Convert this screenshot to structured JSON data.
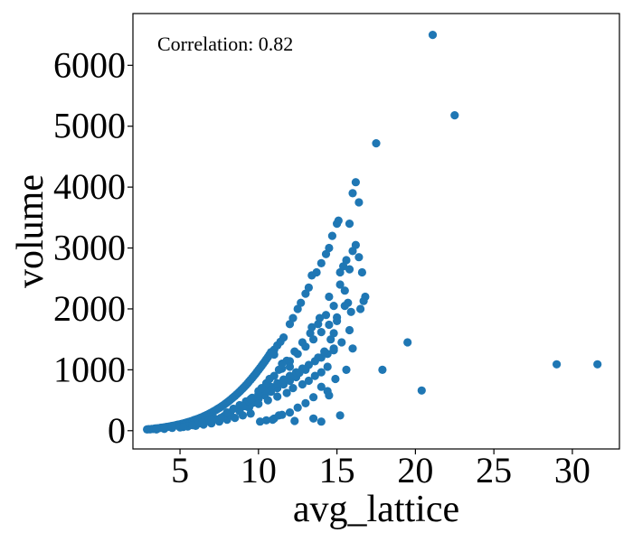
{
  "chart_data": {
    "type": "scatter",
    "title": "",
    "xlabel": "avg_lattice",
    "ylabel": "volume",
    "annotation": "Correlation: 0.82",
    "xlim": [
      2.0,
      33.0
    ],
    "ylim": [
      -300,
      6850
    ],
    "xticks": [
      5,
      10,
      15,
      20,
      25,
      30
    ],
    "yticks": [
      0,
      1000,
      2000,
      3000,
      4000,
      5000,
      6000
    ],
    "grid": false,
    "marker_color": "#1f77b4",
    "points": [
      [
        2.9,
        20
      ],
      [
        3.0,
        25
      ],
      [
        3.1,
        22
      ],
      [
        3.2,
        30
      ],
      [
        3.3,
        28
      ],
      [
        3.4,
        35
      ],
      [
        3.5,
        38
      ],
      [
        3.6,
        40
      ],
      [
        3.7,
        44
      ],
      [
        3.8,
        48
      ],
      [
        3.9,
        52
      ],
      [
        4.0,
        55
      ],
      [
        4.1,
        60
      ],
      [
        4.2,
        63
      ],
      [
        4.3,
        68
      ],
      [
        4.4,
        72
      ],
      [
        4.5,
        78
      ],
      [
        4.6,
        82
      ],
      [
        4.7,
        88
      ],
      [
        4.8,
        95
      ],
      [
        4.9,
        100
      ],
      [
        5.0,
        105
      ],
      [
        5.1,
        112
      ],
      [
        5.2,
        118
      ],
      [
        5.3,
        125
      ],
      [
        5.4,
        132
      ],
      [
        5.5,
        140
      ],
      [
        5.6,
        148
      ],
      [
        5.7,
        156
      ],
      [
        5.8,
        165
      ],
      [
        5.9,
        174
      ],
      [
        6.0,
        182
      ],
      [
        6.1,
        192
      ],
      [
        6.2,
        202
      ],
      [
        6.3,
        212
      ],
      [
        6.4,
        222
      ],
      [
        6.5,
        234
      ],
      [
        6.6,
        246
      ],
      [
        6.7,
        258
      ],
      [
        6.8,
        270
      ],
      [
        6.9,
        284
      ],
      [
        7.0,
        298
      ],
      [
        7.1,
        312
      ],
      [
        7.2,
        326
      ],
      [
        7.3,
        342
      ],
      [
        7.4,
        358
      ],
      [
        7.5,
        374
      ],
      [
        7.6,
        390
      ],
      [
        7.7,
        408
      ],
      [
        7.8,
        426
      ],
      [
        7.9,
        444
      ],
      [
        8.0,
        464
      ],
      [
        8.1,
        484
      ],
      [
        8.2,
        504
      ],
      [
        8.3,
        526
      ],
      [
        8.4,
        548
      ],
      [
        8.5,
        570
      ],
      [
        8.6,
        594
      ],
      [
        8.7,
        618
      ],
      [
        8.8,
        642
      ],
      [
        8.9,
        668
      ],
      [
        9.0,
        694
      ],
      [
        9.1,
        720
      ],
      [
        9.2,
        748
      ],
      [
        9.3,
        776
      ],
      [
        9.4,
        806
      ],
      [
        9.5,
        836
      ],
      [
        9.6,
        866
      ],
      [
        9.7,
        898
      ],
      [
        9.8,
        930
      ],
      [
        9.9,
        962
      ],
      [
        10.0,
        996
      ],
      [
        10.1,
        1030
      ],
      [
        10.2,
        1064
      ],
      [
        10.3,
        1100
      ],
      [
        10.4,
        1136
      ],
      [
        10.5,
        1172
      ],
      [
        10.6,
        1210
      ],
      [
        10.7,
        1248
      ],
      [
        10.8,
        1288
      ],
      [
        11.0,
        1330
      ],
      [
        11.2,
        1400
      ],
      [
        11.4,
        1460
      ],
      [
        11.6,
        1530
      ],
      [
        3.5,
        20
      ],
      [
        4.0,
        30
      ],
      [
        4.5,
        45
      ],
      [
        5.0,
        55
      ],
      [
        5.5,
        70
      ],
      [
        6.0,
        80
      ],
      [
        6.5,
        100
      ],
      [
        7.0,
        120
      ],
      [
        7.5,
        150
      ],
      [
        8.0,
        180
      ],
      [
        8.5,
        210
      ],
      [
        9.0,
        250
      ],
      [
        9.5,
        280
      ],
      [
        6.2,
        120
      ],
      [
        6.8,
        160
      ],
      [
        7.2,
        200
      ],
      [
        7.8,
        240
      ],
      [
        8.2,
        300
      ],
      [
        8.8,
        350
      ],
      [
        9.2,
        400
      ],
      [
        9.6,
        450
      ],
      [
        10.0,
        520
      ],
      [
        10.4,
        580
      ],
      [
        10.8,
        640
      ],
      [
        11.2,
        700
      ],
      [
        11.6,
        760
      ],
      [
        12.0,
        820
      ],
      [
        12.4,
        880
      ],
      [
        5.2,
        60
      ],
      [
        5.8,
        90
      ],
      [
        6.4,
        130
      ],
      [
        7.0,
        170
      ],
      [
        7.6,
        210
      ],
      [
        8.2,
        260
      ],
      [
        8.8,
        320
      ],
      [
        9.4,
        380
      ],
      [
        10.0,
        440
      ],
      [
        10.6,
        500
      ],
      [
        11.2,
        560
      ],
      [
        11.8,
        620
      ],
      [
        12.2,
        700
      ],
      [
        12.8,
        760
      ],
      [
        13.2,
        820
      ],
      [
        13.6,
        900
      ],
      [
        14.0,
        960
      ],
      [
        14.4,
        1050
      ],
      [
        8.0,
        300
      ],
      [
        8.4,
        360
      ],
      [
        8.8,
        420
      ],
      [
        9.2,
        480
      ],
      [
        9.6,
        540
      ],
      [
        10.0,
        600
      ],
      [
        10.4,
        660
      ],
      [
        10.8,
        720
      ],
      [
        11.2,
        780
      ],
      [
        11.6,
        840
      ],
      [
        12.0,
        900
      ],
      [
        12.4,
        960
      ],
      [
        12.8,
        1020
      ],
      [
        13.2,
        1080
      ],
      [
        13.6,
        1140
      ],
      [
        14.0,
        1200
      ],
      [
        14.4,
        1260
      ],
      [
        14.8,
        1320
      ],
      [
        9.0,
        400
      ],
      [
        9.5,
        520
      ],
      [
        10.0,
        650
      ],
      [
        10.5,
        780
      ],
      [
        11.0,
        900
      ],
      [
        11.5,
        1020
      ],
      [
        12.0,
        1140
      ],
      [
        12.5,
        1260
      ],
      [
        13.0,
        1380
      ],
      [
        13.5,
        1500
      ],
      [
        14.0,
        1620
      ],
      [
        14.5,
        1740
      ],
      [
        15.0,
        1860
      ],
      [
        10.2,
        700
      ],
      [
        10.7,
        850
      ],
      [
        11.3,
        1000
      ],
      [
        11.8,
        1150
      ],
      [
        12.3,
        1300
      ],
      [
        12.8,
        1450
      ],
      [
        13.3,
        1600
      ],
      [
        13.8,
        1750
      ],
      [
        14.3,
        1900
      ],
      [
        14.8,
        2050
      ],
      [
        12.0,
        1750
      ],
      [
        12.2,
        1850
      ],
      [
        12.5,
        2000
      ],
      [
        12.7,
        2100
      ],
      [
        13.0,
        2250
      ],
      [
        13.2,
        2350
      ],
      [
        13.4,
        2550
      ],
      [
        13.7,
        2600
      ],
      [
        14.0,
        2750
      ],
      [
        14.3,
        2900
      ],
      [
        14.5,
        3000
      ],
      [
        14.7,
        3200
      ],
      [
        15.0,
        3400
      ],
      [
        15.1,
        3450
      ],
      [
        15.8,
        3400
      ],
      [
        16.0,
        3900
      ],
      [
        16.2,
        4080
      ],
      [
        16.4,
        3750
      ],
      [
        15.2,
        2600
      ],
      [
        15.4,
        2700
      ],
      [
        15.6,
        2800
      ],
      [
        15.8,
        2650
      ],
      [
        16.0,
        2950
      ],
      [
        16.2,
        3050
      ],
      [
        16.4,
        2850
      ],
      [
        16.6,
        2600
      ],
      [
        15.5,
        2300
      ],
      [
        15.7,
        2100
      ],
      [
        15.9,
        1950
      ],
      [
        16.7,
        2130
      ],
      [
        15.0,
        1800
      ],
      [
        14.6,
        1500
      ],
      [
        14.2,
        1300
      ],
      [
        14.8,
        1350
      ],
      [
        15.3,
        1450
      ],
      [
        15.6,
        1000
      ],
      [
        14.9,
        850
      ],
      [
        14.4,
        650
      ],
      [
        14.0,
        720
      ],
      [
        13.5,
        550
      ],
      [
        13.0,
        450
      ],
      [
        12.5,
        380
      ],
      [
        12.0,
        300
      ],
      [
        11.5,
        260
      ],
      [
        11.0,
        200
      ],
      [
        10.5,
        170
      ],
      [
        10.1,
        150
      ],
      [
        10.9,
        180
      ],
      [
        11.3,
        250
      ],
      [
        12.3,
        160
      ],
      [
        13.5,
        200
      ],
      [
        14.0,
        150
      ],
      [
        14.5,
        580
      ],
      [
        15.2,
        250
      ],
      [
        16.0,
        1350
      ],
      [
        16.5,
        2000
      ],
      [
        14.8,
        1600
      ],
      [
        13.8,
        1200
      ],
      [
        13.0,
        1000
      ],
      [
        12.6,
        950
      ],
      [
        12.0,
        1050
      ],
      [
        11.5,
        1100
      ],
      [
        11.0,
        1250
      ],
      [
        13.4,
        1700
      ],
      [
        13.9,
        1850
      ],
      [
        14.5,
        2200
      ],
      [
        15.2,
        2400
      ],
      [
        15.5,
        2050
      ],
      [
        17.5,
        4720
      ],
      [
        21.1,
        6500
      ],
      [
        22.5,
        5180
      ],
      [
        19.5,
        1450
      ],
      [
        17.9,
        1000
      ],
      [
        20.4,
        660
      ],
      [
        29.0,
        1090
      ],
      [
        31.6,
        1090
      ],
      [
        16.8,
        2200
      ],
      [
        15.8,
        1650
      ]
    ]
  }
}
